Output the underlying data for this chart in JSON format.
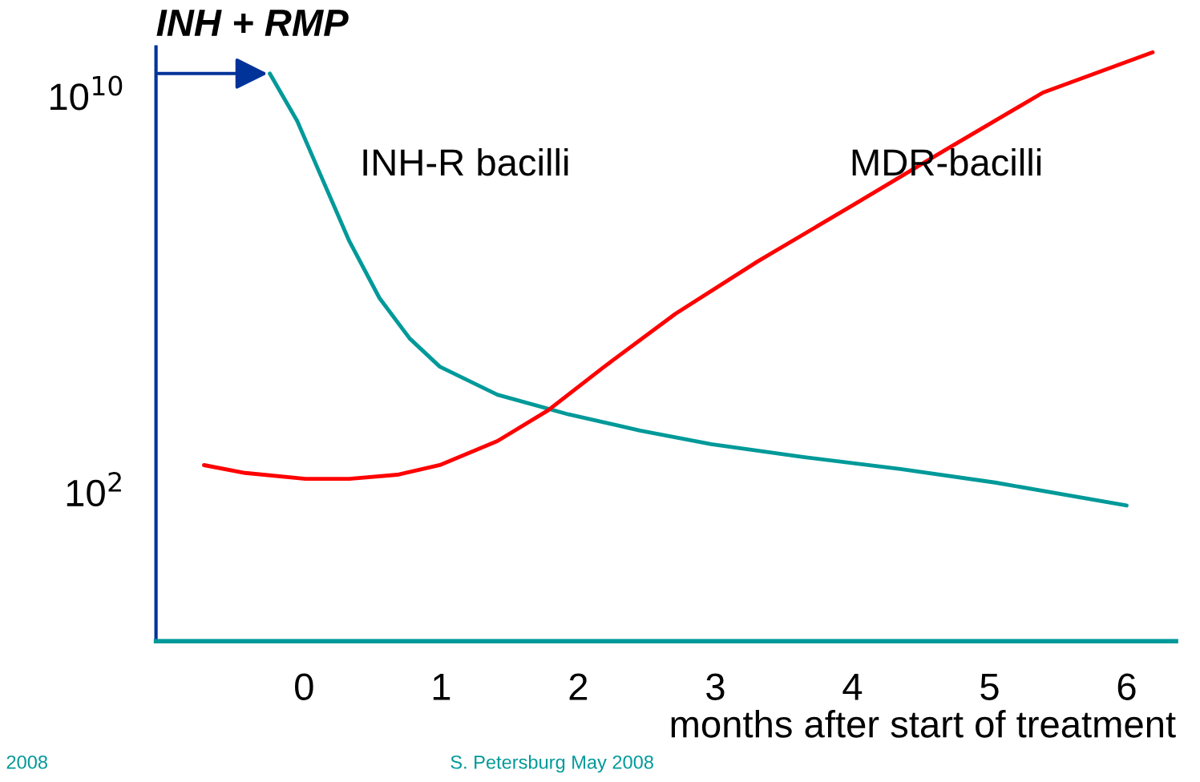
{
  "chart_data": {
    "type": "line",
    "title": "INH + RMP",
    "xlabel": "months after start of treatment",
    "series": [
      {
        "name": "INH-R bacilli",
        "color": "#009999",
        "x": [
          -0.25,
          -0.05,
          0.1,
          0.33,
          0.55,
          0.77,
          0.99,
          1.41,
          1.93,
          2.45,
          2.97,
          3.65,
          4.35,
          5.04,
          6.0
        ],
        "values": [
          29000000000.0,
          3200000000.0,
          350000000.0,
          12000000.0,
          850000.0,
          130000.0,
          35000.0,
          9500.0,
          3800.0,
          1800.0,
          950,
          520,
          300,
          160,
          55
        ]
      },
      {
        "name": "MDR-bacilli",
        "color": "#ff0000",
        "x": [
          -0.73,
          -0.43,
          0.01,
          0.33,
          0.68,
          0.99,
          1.41,
          1.78,
          2.19,
          2.71,
          3.31,
          4.0,
          4.69,
          5.39,
          6.19
        ],
        "values": [
          360,
          250,
          190,
          190,
          230,
          360,
          1100,
          4600.0,
          35000.0,
          410000.0,
          4700000.0,
          63000000.0,
          870000000.0,
          12000000000.0,
          78000000000.0
        ]
      }
    ],
    "log": true,
    "xlim": [
      -1.08,
      6.36
    ],
    "xticks": [
      0,
      1,
      2,
      3,
      4,
      5,
      6
    ],
    "ylim": [
      0.1,
      100000000000.0
    ],
    "yticks": [
      {
        "value": 100,
        "label": "10$^{2}$"
      },
      {
        "value": 10000000000.0,
        "label": "10$^{10}$"
      }
    ],
    "grid": false,
    "legend": false,
    "marker": "none",
    "line_style": "solid",
    "annotations": [
      "S. Petersburg May 2008",
      "2008"
    ]
  }
}
